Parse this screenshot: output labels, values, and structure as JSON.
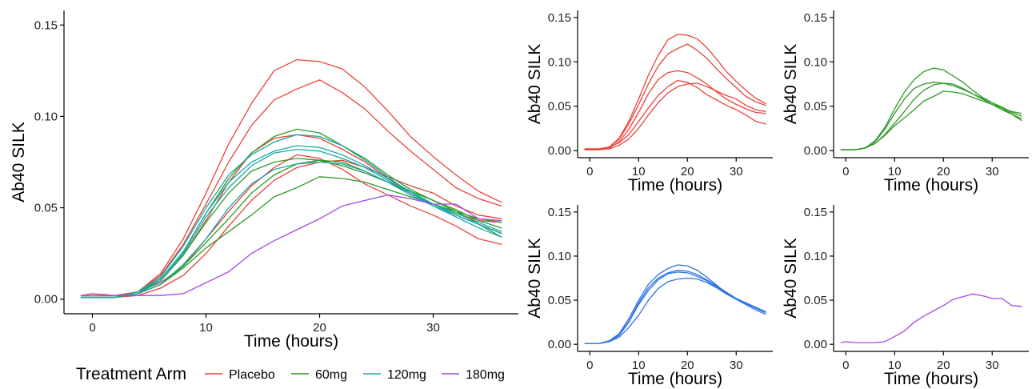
{
  "colors": {
    "placebo": "#E8433A",
    "60mg": "#2E9B27",
    "120mg": "#1BA8A8",
    "180mg": "#A347E8",
    "120mg_panel": "#2F74E5"
  },
  "legend": {
    "title": "Treatment Arm",
    "entries": [
      {
        "label": "Placebo",
        "color_key": "placebo"
      },
      {
        "label": "60mg",
        "color_key": "60mg"
      },
      {
        "label": "120mg",
        "color_key": "120mg"
      },
      {
        "label": "180mg",
        "color_key": "180mg"
      }
    ]
  },
  "chart_data": [
    {
      "id": "main",
      "type": "line",
      "xlabel": "Time (hours)",
      "ylabel": "Ab40 SILK",
      "xlim": [
        -2.5,
        37.5
      ],
      "ylim": [
        -0.008,
        0.158
      ],
      "xticks": [
        0,
        10,
        20,
        30
      ],
      "yticks": [
        0.0,
        0.05,
        0.1,
        0.15
      ],
      "ytick_labels": [
        "0.00",
        "0.05",
        "0.10",
        "0.15"
      ],
      "x": [
        -1,
        0,
        2,
        4,
        6,
        8,
        10,
        12,
        14,
        16,
        18,
        20,
        22,
        24,
        26,
        28,
        30,
        32,
        34,
        36
      ],
      "series": [
        {
          "group": "placebo",
          "values": [
            0.001,
            0.001,
            0.001,
            0.004,
            0.014,
            0.033,
            0.058,
            0.085,
            0.107,
            0.125,
            0.131,
            0.13,
            0.126,
            0.116,
            0.103,
            0.089,
            0.078,
            0.068,
            0.059,
            0.053
          ]
        },
        {
          "group": "placebo",
          "values": [
            0.001,
            0.001,
            0.001,
            0.004,
            0.013,
            0.03,
            0.052,
            0.075,
            0.095,
            0.109,
            0.115,
            0.12,
            0.113,
            0.104,
            0.092,
            0.081,
            0.071,
            0.061,
            0.055,
            0.051
          ]
        },
        {
          "group": "placebo",
          "values": [
            0.001,
            0.001,
            0.001,
            0.003,
            0.01,
            0.024,
            0.043,
            0.064,
            0.08,
            0.088,
            0.09,
            0.088,
            0.082,
            0.075,
            0.066,
            0.058,
            0.052,
            0.047,
            0.043,
            0.042
          ]
        },
        {
          "group": "placebo",
          "values": [
            0.002,
            0.002,
            0.002,
            0.004,
            0.009,
            0.018,
            0.033,
            0.048,
            0.062,
            0.072,
            0.079,
            0.077,
            0.071,
            0.063,
            0.057,
            0.051,
            0.046,
            0.04,
            0.033,
            0.03
          ]
        },
        {
          "group": "placebo",
          "values": [
            0.001,
            0.001,
            0.001,
            0.002,
            0.006,
            0.013,
            0.025,
            0.04,
            0.054,
            0.065,
            0.072,
            0.075,
            0.076,
            0.072,
            0.067,
            0.062,
            0.058,
            0.051,
            0.046,
            0.044
          ]
        },
        {
          "group": "60mg",
          "values": [
            0.001,
            0.001,
            0.001,
            0.003,
            0.011,
            0.026,
            0.047,
            0.066,
            0.08,
            0.089,
            0.093,
            0.091,
            0.084,
            0.077,
            0.068,
            0.06,
            0.054,
            0.048,
            0.041,
            0.034
          ]
        },
        {
          "group": "60mg",
          "values": [
            0.001,
            0.001,
            0.001,
            0.003,
            0.01,
            0.024,
            0.042,
            0.058,
            0.07,
            0.075,
            0.077,
            0.076,
            0.073,
            0.069,
            0.064,
            0.059,
            0.054,
            0.049,
            0.043,
            0.039
          ]
        },
        {
          "group": "60mg",
          "values": [
            0.001,
            0.001,
            0.001,
            0.003,
            0.008,
            0.018,
            0.031,
            0.044,
            0.058,
            0.068,
            0.074,
            0.076,
            0.075,
            0.07,
            0.064,
            0.058,
            0.052,
            0.046,
            0.041,
            0.036
          ]
        },
        {
          "group": "60mg",
          "values": [
            0.001,
            0.001,
            0.001,
            0.003,
            0.008,
            0.017,
            0.028,
            0.037,
            0.046,
            0.056,
            0.061,
            0.067,
            0.066,
            0.064,
            0.06,
            0.056,
            0.052,
            0.048,
            0.044,
            0.042
          ]
        },
        {
          "group": "120mg",
          "values": [
            0.001,
            0.001,
            0.001,
            0.004,
            0.012,
            0.029,
            0.05,
            0.068,
            0.079,
            0.086,
            0.09,
            0.089,
            0.084,
            0.076,
            0.067,
            0.058,
            0.051,
            0.046,
            0.041,
            0.036
          ]
        },
        {
          "group": "120mg",
          "values": [
            0.001,
            0.001,
            0.001,
            0.004,
            0.011,
            0.026,
            0.047,
            0.064,
            0.075,
            0.081,
            0.084,
            0.083,
            0.079,
            0.073,
            0.066,
            0.059,
            0.052,
            0.046,
            0.041,
            0.036
          ]
        },
        {
          "group": "120mg",
          "values": [
            0.001,
            0.001,
            0.001,
            0.003,
            0.01,
            0.025,
            0.045,
            0.061,
            0.073,
            0.08,
            0.082,
            0.081,
            0.077,
            0.072,
            0.065,
            0.058,
            0.052,
            0.047,
            0.042,
            0.037
          ]
        },
        {
          "group": "120mg",
          "values": [
            0.001,
            0.001,
            0.001,
            0.003,
            0.008,
            0.019,
            0.033,
            0.05,
            0.063,
            0.071,
            0.074,
            0.075,
            0.074,
            0.07,
            0.064,
            0.057,
            0.051,
            0.045,
            0.039,
            0.034
          ]
        },
        {
          "group": "180mg",
          "values": [
            0.002,
            0.003,
            0.002,
            0.002,
            0.002,
            0.003,
            0.009,
            0.015,
            0.025,
            0.032,
            0.038,
            0.044,
            0.051,
            0.054,
            0.057,
            0.055,
            0.052,
            0.052,
            0.044,
            0.043
          ]
        }
      ]
    },
    {
      "id": "placebo-panel",
      "type": "line",
      "group": "placebo",
      "xlabel": "Time (hours)",
      "ylabel": "Ab40 SILK",
      "xlim": [
        -2.5,
        37.5
      ],
      "ylim": [
        -0.008,
        0.158
      ],
      "xticks": [
        0,
        10,
        20,
        30
      ],
      "yticks": [
        0.0,
        0.05,
        0.1,
        0.15
      ],
      "ytick_labels": [
        "0.00",
        "0.05",
        "0.10",
        "0.15"
      ],
      "x": [
        -1,
        0,
        2,
        4,
        6,
        8,
        10,
        12,
        14,
        16,
        18,
        20,
        22,
        24,
        26,
        28,
        30,
        32,
        34,
        36
      ],
      "series_from": "main",
      "series_indices": [
        0,
        1,
        2,
        3,
        4
      ]
    },
    {
      "id": "60mg-panel",
      "type": "line",
      "group": "60mg",
      "xlabel": "Time (hours)",
      "ylabel": "Ab40 SILK",
      "xlim": [
        -2.5,
        37.5
      ],
      "ylim": [
        -0.008,
        0.158
      ],
      "xticks": [
        0,
        10,
        20,
        30
      ],
      "yticks": [
        0.0,
        0.05,
        0.1,
        0.15
      ],
      "ytick_labels": [
        "0.00",
        "0.05",
        "0.10",
        "0.15"
      ],
      "x": [
        -1,
        0,
        2,
        4,
        6,
        8,
        10,
        12,
        14,
        16,
        18,
        20,
        22,
        24,
        26,
        28,
        30,
        32,
        34,
        36
      ],
      "series_from": "main",
      "series_indices": [
        5,
        6,
        7,
        8
      ]
    },
    {
      "id": "120mg-panel",
      "type": "line",
      "group": "120mg_panel",
      "xlabel": "Time (hours)",
      "ylabel": "Ab40 SILK",
      "xlim": [
        -2.5,
        37.5
      ],
      "ylim": [
        -0.008,
        0.158
      ],
      "xticks": [
        0,
        10,
        20,
        30
      ],
      "yticks": [
        0.0,
        0.05,
        0.1,
        0.15
      ],
      "ytick_labels": [
        "0.00",
        "0.05",
        "0.10",
        "0.15"
      ],
      "x": [
        -1,
        0,
        2,
        4,
        6,
        8,
        10,
        12,
        14,
        16,
        18,
        20,
        22,
        24,
        26,
        28,
        30,
        32,
        34,
        36
      ],
      "series_from": "main",
      "series_indices": [
        9,
        10,
        11,
        12
      ]
    },
    {
      "id": "180mg-panel",
      "type": "line",
      "group": "180mg",
      "xlabel": "Time (hours)",
      "ylabel": "Ab40 SILK",
      "xlim": [
        -2.5,
        37.5
      ],
      "ylim": [
        -0.008,
        0.158
      ],
      "xticks": [
        0,
        10,
        20,
        30
      ],
      "yticks": [
        0.0,
        0.05,
        0.1,
        0.15
      ],
      "ytick_labels": [
        "0.00",
        "0.05",
        "0.10",
        "0.15"
      ],
      "x": [
        -1,
        0,
        2,
        4,
        6,
        8,
        10,
        12,
        14,
        16,
        18,
        20,
        22,
        24,
        26,
        28,
        30,
        32,
        34,
        36
      ],
      "series_from": "main",
      "series_indices": [
        13
      ]
    }
  ]
}
